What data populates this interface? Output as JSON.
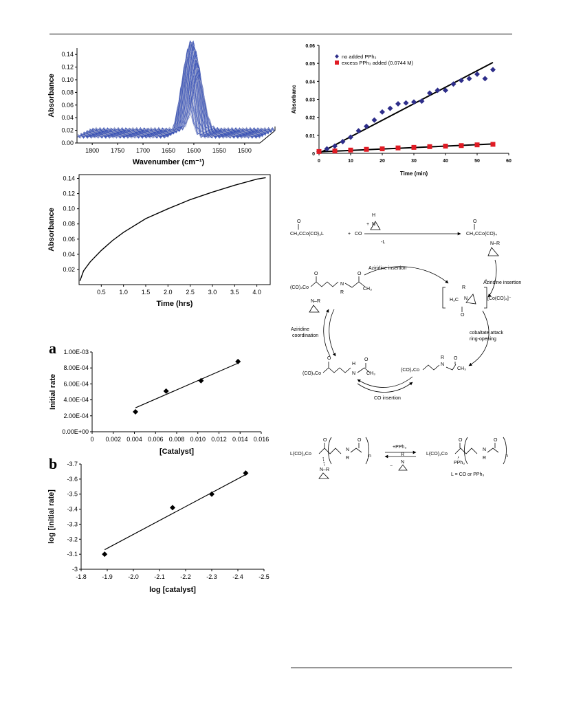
{
  "colors": {
    "ir_blue": "#3a52b5",
    "series_blue": "#2e2e8a",
    "series_red": "#e01b24",
    "axis": "#000000"
  },
  "chart_data": [
    {
      "id": "ir_spectrum",
      "type": "area",
      "title": "",
      "xlabel": "Wavenumber (cm⁻¹)",
      "ylabel": "Absorbance",
      "x_reversed": true,
      "xlim": [
        1830,
        1470
      ],
      "ylim": [
        0,
        0.15
      ],
      "x_ticks": [
        "1800",
        "1750",
        "1700",
        "1650",
        "1600",
        "1550",
        "1500"
      ],
      "y_ticks": [
        "0.00",
        "0.02",
        "0.04",
        "0.06",
        "0.08",
        "0.10",
        "0.12",
        "0.14"
      ],
      "peak": {
        "x": 1620,
        "y": 0.145
      },
      "baseline": 0.02
    },
    {
      "id": "absorbance_vs_time",
      "type": "line",
      "title": "",
      "xlabel": "Time (hrs)",
      "ylabel": "Absorbance",
      "xlim": [
        0,
        4.3
      ],
      "ylim": [
        0,
        0.145
      ],
      "x_ticks": [
        "0.5",
        "1.0",
        "1.5",
        "2.0",
        "2.5",
        "3.0",
        "3.5",
        "4.0"
      ],
      "y_ticks": [
        "0.02",
        "0.04",
        "0.06",
        "0.08",
        "0.10",
        "0.12",
        "0.14"
      ],
      "x": [
        0.02,
        0.1,
        0.25,
        0.5,
        0.75,
        1.0,
        1.5,
        2.0,
        2.5,
        3.0,
        3.5,
        4.0,
        4.2
      ],
      "y": [
        0.005,
        0.018,
        0.03,
        0.045,
        0.058,
        0.069,
        0.087,
        0.1,
        0.112,
        0.122,
        0.131,
        0.139,
        0.141
      ]
    },
    {
      "id": "absorbance_vs_time_min",
      "type": "scatter",
      "title": "",
      "xlabel": "Time (min)",
      "ylabel": "Absorbanc",
      "xlim": [
        0,
        60
      ],
      "ylim": [
        0,
        0.06
      ],
      "x_ticks": [
        "0",
        "10",
        "20",
        "30",
        "40",
        "50",
        "60"
      ],
      "y_ticks": [
        "0",
        "0.01",
        "0.02",
        "0.03",
        "0.04",
        "0.05",
        "0.06"
      ],
      "legend_position": "top-left",
      "series": [
        {
          "name": "no added PPh₃",
          "marker": "diamond",
          "x": [
            0,
            2.5,
            5,
            7.5,
            10,
            12.5,
            15,
            17.5,
            20,
            22.5,
            25,
            27.5,
            30,
            32.5,
            35,
            37.5,
            40,
            42.5,
            45,
            47.5,
            50,
            52.5,
            55
          ],
          "y": [
            0.001,
            0.0025,
            0.004,
            0.0065,
            0.009,
            0.0125,
            0.015,
            0.0185,
            0.023,
            0.025,
            0.0275,
            0.028,
            0.0285,
            0.029,
            0.0335,
            0.035,
            0.035,
            0.0385,
            0.0405,
            0.0415,
            0.044,
            0.0415,
            0.0465
          ],
          "fit": [
            [
              0,
              0.0
            ],
            [
              55,
              0.0505
            ]
          ]
        },
        {
          "name": "excess PPh₃ added (0.0744 M)",
          "marker": "square",
          "x": [
            0,
            5,
            10,
            15,
            20,
            25,
            30,
            35,
            40,
            45,
            50,
            55
          ],
          "y": [
            0.001,
            0.0013,
            0.0018,
            0.0022,
            0.0025,
            0.003,
            0.0033,
            0.0037,
            0.004,
            0.0043,
            0.0047,
            0.005
          ],
          "fit": [
            [
              0,
              0.0008
            ],
            [
              55,
              0.0052
            ]
          ]
        }
      ]
    },
    {
      "id": "panel_a",
      "type": "scatter",
      "title": "",
      "panel_label": "a",
      "xlabel": "[Catalyst]",
      "ylabel": "Initial rate",
      "xlim": [
        0,
        0.016
      ],
      "ylim": [
        0,
        0.001
      ],
      "x_ticks": [
        "0",
        "0.002",
        "0.004",
        "0.006",
        "0.008",
        "0.010",
        "0.012",
        "0.014",
        "0.016"
      ],
      "y_ticks": [
        "0.00E+00",
        "2.00E-04",
        "4.00E-04",
        "6.00E-04",
        "8.00E-04",
        "1.00E-03"
      ],
      "x": [
        0.0041,
        0.007,
        0.0103,
        0.0138
      ],
      "y": [
        0.00025,
        0.00051,
        0.00064,
        0.00088
      ],
      "fit": [
        [
          0.0041,
          0.0003
        ],
        [
          0.0138,
          0.00086
        ]
      ]
    },
    {
      "id": "panel_b",
      "type": "scatter",
      "title": "",
      "panel_label": "b",
      "xlabel": "log [catalyst]",
      "ylabel": "log [initial rate]",
      "xlim": [
        -1.8,
        -2.5
      ],
      "ylim": [
        -3.0,
        -3.7
      ],
      "x_ticks": [
        "-1.8",
        "-1.9",
        "-2.0",
        "-2.1",
        "-2.2",
        "-2.3",
        "-2.4",
        "-2.5"
      ],
      "y_ticks": [
        "-3",
        "-3.1",
        "-3.2",
        "-3.3",
        "-3.4",
        "-3.5",
        "-3.6",
        "-3.7"
      ],
      "x": [
        -1.89,
        -2.15,
        -2.3,
        -2.43
      ],
      "y": [
        -3.1,
        -3.41,
        -3.5,
        -3.64
      ],
      "fit": [
        [
          -1.89,
          -3.13
        ],
        [
          -2.43,
          -3.63
        ]
      ]
    }
  ],
  "scheme": {
    "top_reactants": {
      "acyl": "CH₃CCo(CO)₃L",
      "plus1": "+",
      "co": "CO",
      "plus2": "+",
      "loss": "-L",
      "o": "O",
      "nh": "H",
      "n": "N"
    },
    "top_product": {
      "formula": "CH₃CCo(CO)₄",
      "n_r": "N–R",
      "o": "O"
    },
    "arrow_labels": {
      "right_down": "Aziridine insertion",
      "top_arc": "Aziridine insertion",
      "right_arc_1": "cobaltate attack",
      "right_arc_2": "ring-opening",
      "bottom_arc": "CO insertion",
      "left_arc_1": "Aziridine",
      "left_arc_2": "coordination"
    },
    "species": {
      "top_left": {
        "co": "(CO)₄Co",
        "o": "O",
        "n": "N",
        "r": "R",
        "ch3": "CH₃",
        "nr": "N–R"
      },
      "top_right": {
        "h3c": "H₃C",
        "n": "N",
        "r": "R",
        "o": "O",
        "plus": "+",
        "anion": "[Co(CO)₄]⁻"
      },
      "bottom_left": {
        "co": "(CO)₄Co",
        "o": "O",
        "n": "N",
        "h": "H",
        "ch3": "CH₃"
      },
      "bottom_right": {
        "co": "(CO)₄Co",
        "n": "N",
        "r": "R",
        "o": "O",
        "ch3": "CH₃"
      }
    },
    "polymer": {
      "left_co": "L(CO)₃Co",
      "right_co": "L(CO)₃Co",
      "n_r": "N–R",
      "n": "N",
      "r": "R",
      "o": "O",
      "sub_n": "n",
      "pph3_plus": "+PPh₃",
      "minus": "−",
      "pph3": "PPh₃",
      "l_def": "L = CO or PPh₃"
    }
  }
}
